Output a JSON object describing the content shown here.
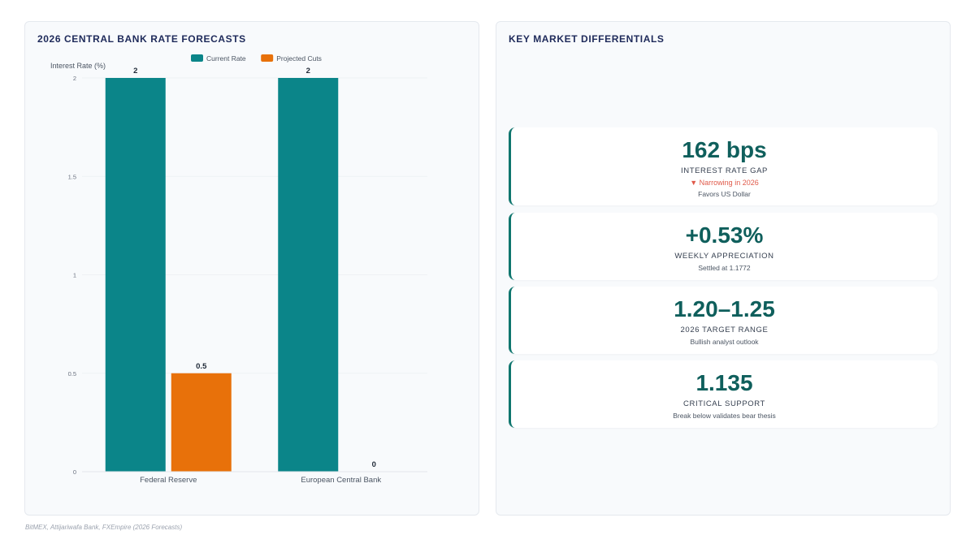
{
  "left_panel": {
    "title": "2026 CENTRAL BANK RATE FORECASTS"
  },
  "right_panel": {
    "title": "KEY MARKET DIFFERENTIALS"
  },
  "chart_data": {
    "type": "bar",
    "title": "",
    "ylabel": "Interest Rate (%)",
    "xlabel": "",
    "categories": [
      "Federal Reserve",
      "European Central Bank"
    ],
    "series": [
      {
        "name": "Current Rate",
        "values": [
          2,
          2
        ],
        "color": "#0b8589",
        "labels": [
          "2",
          "2"
        ]
      },
      {
        "name": "Projected Cuts",
        "values": [
          0.5,
          0
        ],
        "color": "#e8710a",
        "labels": [
          "0.5",
          "0"
        ]
      }
    ],
    "ylim": [
      0,
      2
    ],
    "yticks": [
      "0",
      "0.5",
      "1",
      "1.5",
      "2"
    ],
    "legend_position": "top-center",
    "grid": false
  },
  "cards": [
    {
      "value": "162 bps",
      "label": "INTEREST RATE GAP",
      "trend": "▼ Narrowing in 2026",
      "note": "Favors US Dollar"
    },
    {
      "value": "+0.53%",
      "label": "WEEKLY APPRECIATION",
      "note": "Settled at 1.1772"
    },
    {
      "value": "1.20–1.25",
      "label": "2026 TARGET RANGE",
      "note": "Bullish analyst outlook"
    },
    {
      "value": "1.135",
      "label": "CRITICAL SUPPORT",
      "note": "Break below validates bear thesis"
    }
  ],
  "source": "BitMEX, Attijariwafa Bank, FXEmpire (2026 Forecasts)",
  "colors": {
    "accent": "#0f766e",
    "title": "#1e2a5a",
    "negative": "#e05a4a"
  }
}
